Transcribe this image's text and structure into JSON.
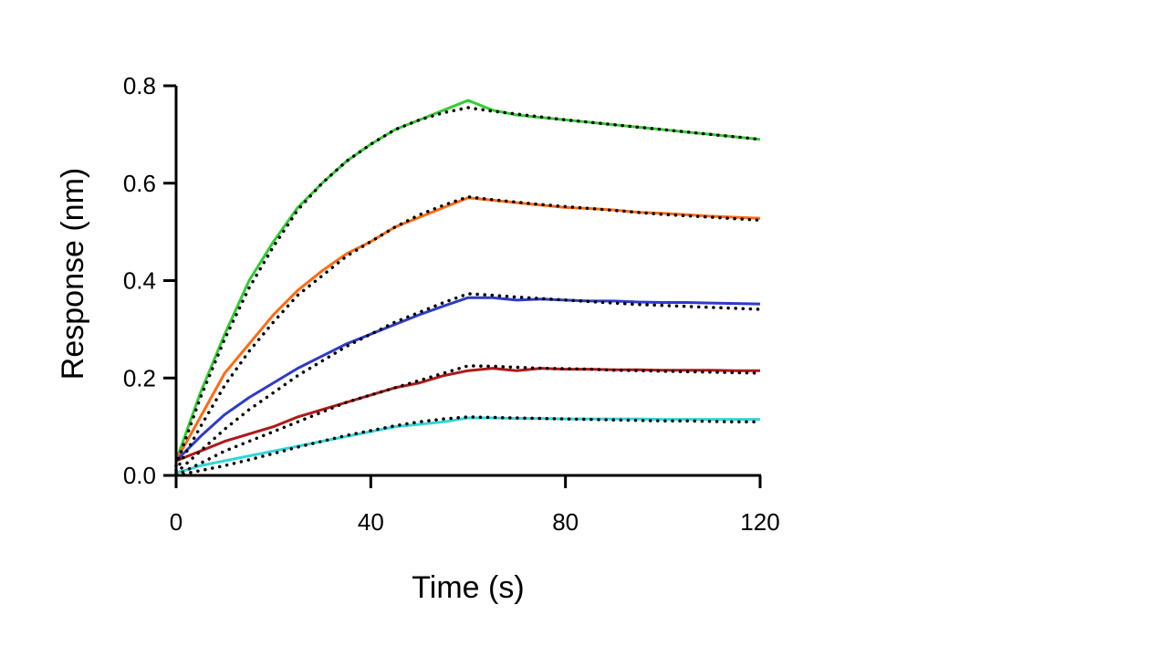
{
  "chart_data": {
    "type": "line",
    "xlabel": "Time (s)",
    "ylabel": "Response (nm)",
    "xlim": [
      0,
      120
    ],
    "ylim": [
      0,
      0.8
    ],
    "x_ticks": [
      0,
      40,
      80,
      120
    ],
    "x_tick_labels": [
      "0",
      "40",
      "80",
      "120"
    ],
    "y_ticks": [
      0,
      0.2,
      0.4,
      0.6,
      0.8
    ],
    "y_tick_labels": [
      "0.0",
      "0.2",
      "0.4",
      "0.6",
      "0.8"
    ],
    "grid": false,
    "legend": "none",
    "series": [
      {
        "color": "#33cc33",
        "x": [
          0,
          5,
          10,
          15,
          20,
          25,
          30,
          35,
          40,
          45,
          50,
          55,
          60,
          65,
          70,
          75,
          80,
          85,
          90,
          95,
          100,
          105,
          110,
          115,
          120
        ],
        "values": [
          0.03,
          0.17,
          0.29,
          0.4,
          0.48,
          0.55,
          0.6,
          0.645,
          0.68,
          0.71,
          0.73,
          0.75,
          0.77,
          0.75,
          0.74,
          0.735,
          0.73,
          0.725,
          0.72,
          0.715,
          0.71,
          0.705,
          0.7,
          0.695,
          0.69
        ]
      },
      {
        "color": "#ff6a13",
        "x": [
          0,
          5,
          10,
          15,
          20,
          25,
          30,
          35,
          40,
          45,
          50,
          55,
          60,
          65,
          70,
          75,
          80,
          85,
          90,
          95,
          100,
          105,
          110,
          115,
          120
        ],
        "values": [
          0.03,
          0.12,
          0.21,
          0.27,
          0.33,
          0.38,
          0.42,
          0.455,
          0.48,
          0.51,
          0.53,
          0.55,
          0.57,
          0.565,
          0.56,
          0.555,
          0.55,
          0.548,
          0.545,
          0.54,
          0.538,
          0.535,
          0.532,
          0.53,
          0.528
        ]
      },
      {
        "color": "#2e3bc8",
        "x": [
          0,
          5,
          10,
          15,
          20,
          25,
          30,
          35,
          40,
          45,
          50,
          55,
          60,
          65,
          70,
          75,
          80,
          85,
          90,
          95,
          100,
          105,
          110,
          115,
          120
        ],
        "values": [
          0.03,
          0.08,
          0.125,
          0.16,
          0.19,
          0.22,
          0.245,
          0.27,
          0.29,
          0.31,
          0.33,
          0.348,
          0.365,
          0.365,
          0.36,
          0.362,
          0.36,
          0.358,
          0.358,
          0.356,
          0.355,
          0.355,
          0.354,
          0.353,
          0.352
        ]
      },
      {
        "color": "#b01818",
        "x": [
          0,
          5,
          10,
          15,
          20,
          25,
          30,
          35,
          40,
          45,
          50,
          55,
          60,
          65,
          70,
          75,
          80,
          85,
          90,
          95,
          100,
          105,
          110,
          115,
          120
        ],
        "values": [
          0.03,
          0.05,
          0.07,
          0.085,
          0.1,
          0.12,
          0.135,
          0.15,
          0.165,
          0.18,
          0.19,
          0.205,
          0.215,
          0.22,
          0.215,
          0.22,
          0.218,
          0.218,
          0.217,
          0.217,
          0.216,
          0.216,
          0.216,
          0.215,
          0.215
        ]
      },
      {
        "color": "#33d6d6",
        "x": [
          0,
          5,
          10,
          15,
          20,
          25,
          30,
          35,
          40,
          45,
          50,
          55,
          60,
          65,
          70,
          75,
          80,
          85,
          90,
          95,
          100,
          105,
          110,
          115,
          120
        ],
        "values": [
          0.005,
          0.02,
          0.03,
          0.04,
          0.05,
          0.06,
          0.07,
          0.08,
          0.09,
          0.1,
          0.105,
          0.11,
          0.118,
          0.118,
          0.117,
          0.117,
          0.116,
          0.116,
          0.116,
          0.116,
          0.115,
          0.115,
          0.115,
          0.115,
          0.115
        ]
      }
    ],
    "fits": [
      {
        "color": "#000000",
        "x": [
          0,
          5,
          10,
          15,
          20,
          25,
          30,
          35,
          40,
          45,
          50,
          55,
          60,
          65,
          70,
          75,
          80,
          85,
          90,
          95,
          100,
          105,
          110,
          115,
          120
        ],
        "values": [
          0.02,
          0.16,
          0.28,
          0.385,
          0.47,
          0.545,
          0.6,
          0.645,
          0.68,
          0.71,
          0.73,
          0.745,
          0.755,
          0.748,
          0.742,
          0.736,
          0.73,
          0.725,
          0.72,
          0.715,
          0.71,
          0.705,
          0.7,
          0.695,
          0.69
        ]
      },
      {
        "color": "#000000",
        "x": [
          0,
          5,
          10,
          15,
          20,
          25,
          30,
          35,
          40,
          45,
          50,
          55,
          60,
          65,
          70,
          75,
          80,
          85,
          90,
          95,
          100,
          105,
          110,
          115,
          120
        ],
        "values": [
          0.01,
          0.1,
          0.185,
          0.255,
          0.315,
          0.37,
          0.41,
          0.45,
          0.48,
          0.51,
          0.535,
          0.555,
          0.572,
          0.566,
          0.561,
          0.556,
          0.552,
          0.548,
          0.544,
          0.54,
          0.536,
          0.533,
          0.53,
          0.527,
          0.524
        ]
      },
      {
        "color": "#000000",
        "x": [
          0,
          5,
          10,
          15,
          20,
          25,
          30,
          35,
          40,
          45,
          50,
          55,
          60,
          65,
          70,
          75,
          80,
          85,
          90,
          95,
          100,
          105,
          110,
          115,
          120
        ],
        "values": [
          0.005,
          0.05,
          0.095,
          0.135,
          0.17,
          0.205,
          0.235,
          0.265,
          0.29,
          0.315,
          0.335,
          0.355,
          0.373,
          0.37,
          0.366,
          0.363,
          0.36,
          0.357,
          0.354,
          0.351,
          0.349,
          0.347,
          0.345,
          0.343,
          0.341
        ]
      },
      {
        "color": "#000000",
        "x": [
          0,
          5,
          10,
          15,
          20,
          25,
          30,
          35,
          40,
          45,
          50,
          55,
          60,
          65,
          70,
          75,
          80,
          85,
          90,
          95,
          100,
          105,
          110,
          115,
          120
        ],
        "values": [
          0.0,
          0.025,
          0.05,
          0.07,
          0.09,
          0.11,
          0.13,
          0.15,
          0.165,
          0.18,
          0.195,
          0.21,
          0.225,
          0.224,
          0.222,
          0.22,
          0.219,
          0.218,
          0.216,
          0.215,
          0.214,
          0.213,
          0.212,
          0.211,
          0.21
        ]
      },
      {
        "color": "#000000",
        "x": [
          0,
          5,
          10,
          15,
          20,
          25,
          30,
          35,
          40,
          45,
          50,
          55,
          60,
          65,
          70,
          75,
          80,
          85,
          90,
          95,
          100,
          105,
          110,
          115,
          120
        ],
        "values": [
          0.0,
          0.01,
          0.02,
          0.032,
          0.045,
          0.058,
          0.07,
          0.082,
          0.092,
          0.102,
          0.11,
          0.116,
          0.12,
          0.119,
          0.118,
          0.117,
          0.116,
          0.115,
          0.114,
          0.113,
          0.112,
          0.112,
          0.111,
          0.11,
          0.11
        ]
      }
    ]
  }
}
